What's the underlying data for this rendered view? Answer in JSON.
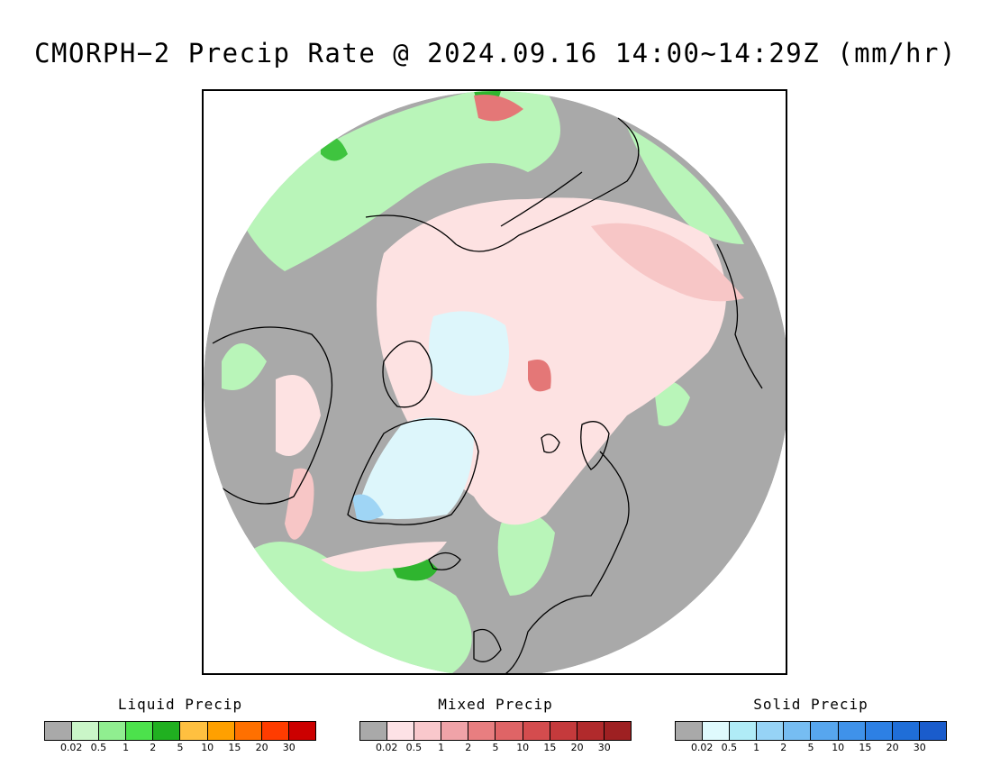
{
  "title": "CMORPH−2 Precip Rate @ 2024.09.16 14:00~14:29Z (mm/hr)",
  "map": {
    "projection": "polar stereographic, north pole centered",
    "colors": {
      "none": "#a9a9a9",
      "liquid_light": "#b9f5b9",
      "liquid_mid": "#8ee98e",
      "liquid_heavy": "#2fb52f",
      "mixed_light": "#fde2e2",
      "mixed_mid": "#f7c6c6",
      "mixed_heavy": "#e47777",
      "solid_light": "#ddf6fb",
      "solid_mid": "#9fd5f5",
      "coastline": "#000000",
      "outside": "#ffffff"
    }
  },
  "legends": [
    {
      "title": "Liquid Precip",
      "colors": [
        "#a9a9a9",
        "#caf6c8",
        "#90ee90",
        "#4ce24c",
        "#20b020",
        "#ffc040",
        "#ffa000",
        "#ff7000",
        "#ff3c00",
        "#cc0000"
      ],
      "ticks": [
        "0.02",
        "0.5",
        "1",
        "2",
        "5",
        "10",
        "15",
        "20",
        "30"
      ]
    },
    {
      "title": "Mixed Precip",
      "colors": [
        "#a9a9a9",
        "#fde2e6",
        "#f9c8cc",
        "#f0a3a8",
        "#e87e80",
        "#df6466",
        "#d44c4e",
        "#c53a3c",
        "#b12a2c",
        "#9e2022"
      ],
      "ticks": [
        "0.02",
        "0.5",
        "1",
        "2",
        "5",
        "10",
        "15",
        "20",
        "30"
      ]
    },
    {
      "title": "Solid Precip",
      "colors": [
        "#a9a9a9",
        "#dffafd",
        "#b0ecf7",
        "#96d3f6",
        "#76bdf2",
        "#57a6ee",
        "#3f92ea",
        "#2d80e4",
        "#1f6ed8",
        "#1a5ccc"
      ],
      "ticks": [
        "0.02",
        "0.5",
        "1",
        "2",
        "5",
        "10",
        "15",
        "20",
        "30"
      ]
    }
  ]
}
